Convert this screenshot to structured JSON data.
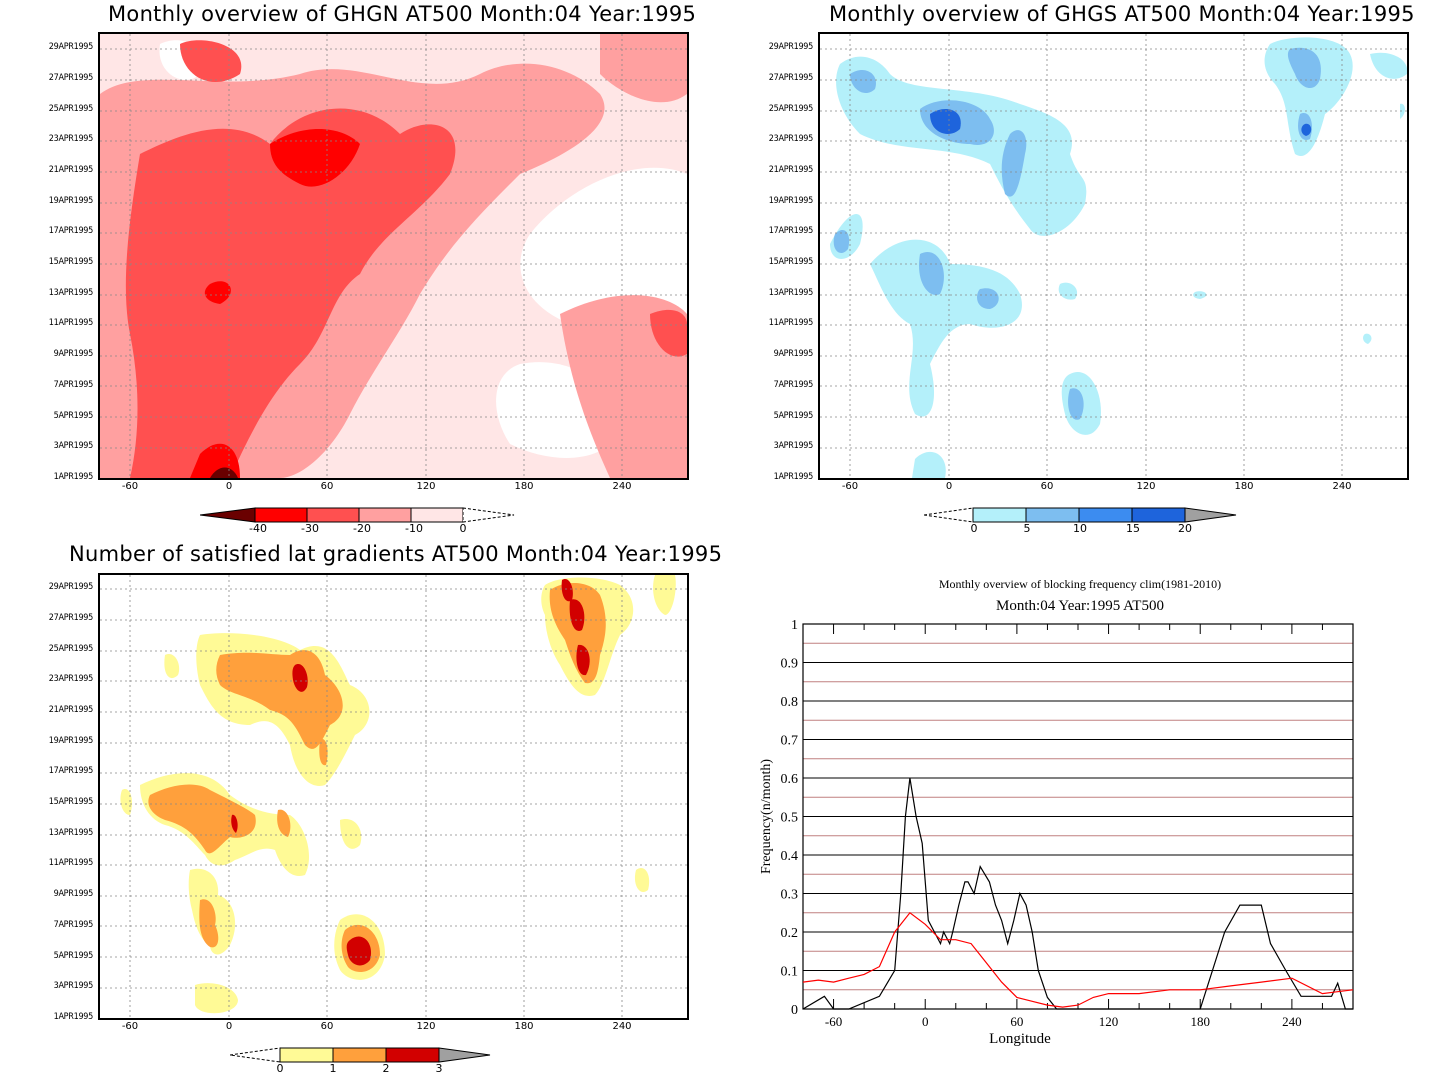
{
  "panels": {
    "ghgn": {
      "title": "Monthly overview of GHGN AT500 Month:04 Year:1995",
      "colorbar": {
        "labels": [
          "-40",
          "-30",
          "-20",
          "-10",
          "0"
        ],
        "colors": [
          "#6a0000",
          "#ff0000",
          "#ff5050",
          "#ffa0a0",
          "#ffe6e6"
        ]
      }
    },
    "ghgs": {
      "title": "Monthly overview of GHGS AT500 Month:04 Year:1995",
      "colorbar": {
        "labels": [
          "0",
          "5",
          "10",
          "15",
          "20"
        ],
        "colors": [
          "#b4f0fa",
          "#7dbef0",
          "#3c8cf0",
          "#1e64dc",
          "#a0a0a0"
        ]
      }
    },
    "lat": {
      "title": "Number of satisfied lat gradients AT500 Month:04 Year:1995",
      "colorbar": {
        "labels": [
          "0",
          "1",
          "2",
          "3"
        ],
        "colors": [
          "#fffa96",
          "#ffa03c",
          "#d20000",
          "#a0a0a0"
        ]
      }
    },
    "freq": {
      "title": "Monthly overview of blocking frequency clim(1981-2010)",
      "subtitle": "Month:04 Year:1995  AT500"
    }
  },
  "date_axis": [
    "1APR1995",
    "3APR1995",
    "5APR1995",
    "7APR1995",
    "9APR1995",
    "11APR1995",
    "13APR1995",
    "15APR1995",
    "17APR1995",
    "19APR1995",
    "21APR1995",
    "23APR1995",
    "25APR1995",
    "27APR1995",
    "29APR1995"
  ],
  "lon_axis": [
    "-60",
    "0",
    "60",
    "120",
    "180",
    "240"
  ],
  "chart_data": [
    {
      "type": "heatmap",
      "title": "Monthly overview of GHGN AT500 Month:04 Year:1995",
      "x_ticks": [
        -60,
        0,
        60,
        120,
        180,
        240
      ],
      "xlim": [
        -78,
        280
      ],
      "y_ticks": [
        "1APR1995",
        "3APR1995",
        "5APR1995",
        "7APR1995",
        "9APR1995",
        "11APR1995",
        "13APR1995",
        "15APR1995",
        "17APR1995",
        "19APR1995",
        "21APR1995",
        "23APR1995",
        "25APR1995",
        "27APR1995",
        "29APR1995"
      ],
      "levels": [
        -40,
        -30,
        -20,
        -10,
        0
      ]
    },
    {
      "type": "heatmap",
      "title": "Monthly overview of GHGS AT500 Month:04 Year:1995",
      "x_ticks": [
        -60,
        0,
        60,
        120,
        180,
        240
      ],
      "xlim": [
        -78,
        280
      ],
      "levels": [
        0,
        5,
        10,
        15,
        20
      ]
    },
    {
      "type": "heatmap",
      "title": "Number of satisfied lat gradients AT500 Month:04 Year:1995",
      "x_ticks": [
        -60,
        0,
        60,
        120,
        180,
        240
      ],
      "xlim": [
        -78,
        280
      ],
      "levels": [
        0,
        1,
        2,
        3
      ]
    },
    {
      "type": "line",
      "title": "Monthly overview of blocking frequency clim(1981-2010)",
      "subtitle": "Month:04 Year:1995  AT500",
      "xlabel": "Longitude",
      "ylabel": "Frequency(n/month)",
      "xlim": [
        -80,
        280
      ],
      "ylim": [
        0,
        1
      ],
      "x_ticks": [
        -60,
        0,
        60,
        120,
        180,
        240
      ],
      "y_ticks": [
        0,
        0.1,
        0.2,
        0.3,
        0.4,
        0.5,
        0.6,
        0.7,
        0.8,
        0.9,
        1
      ],
      "series": [
        {
          "color": "#000000",
          "x": [
            -80,
            -66,
            -60,
            -54,
            -50,
            -30,
            -20,
            -16,
            -13,
            -10,
            -6,
            -2,
            2,
            6,
            10,
            12,
            16,
            18,
            22,
            26,
            28,
            32,
            36,
            42,
            46,
            50,
            54,
            58,
            62,
            66,
            70,
            74,
            80,
            86,
            96,
            180,
            196,
            206,
            212,
            220,
            226,
            236,
            246,
            256,
            266,
            270,
            275,
            280
          ],
          "y": [
            0,
            0.033,
            0,
            0,
            0,
            0.033,
            0.1,
            0.3,
            0.5,
            0.6,
            0.5,
            0.43,
            0.23,
            0.2,
            0.17,
            0.2,
            0.17,
            0.2,
            0.27,
            0.33,
            0.33,
            0.3,
            0.37,
            0.33,
            0.27,
            0.23,
            0.17,
            0.23,
            0.3,
            0.27,
            0.2,
            0.1,
            0.03,
            0,
            0,
            0,
            0.2,
            0.27,
            0.27,
            0.27,
            0.17,
            0.1,
            0.033,
            0.033,
            0.033,
            0.067,
            0,
            0
          ]
        },
        {
          "color": "#ff0000",
          "x": [
            -80,
            -70,
            -60,
            -50,
            -40,
            -30,
            -20,
            -10,
            0,
            10,
            20,
            30,
            40,
            50,
            60,
            70,
            80,
            90,
            100,
            110,
            120,
            140,
            160,
            180,
            200,
            220,
            240,
            260,
            270,
            280
          ],
          "y": [
            0.07,
            0.075,
            0.07,
            0.08,
            0.09,
            0.11,
            0.2,
            0.25,
            0.22,
            0.18,
            0.18,
            0.17,
            0.12,
            0.07,
            0.03,
            0.02,
            0.01,
            0.005,
            0.01,
            0.03,
            0.04,
            0.04,
            0.05,
            0.05,
            0.06,
            0.07,
            0.08,
            0.04,
            0.045,
            0.05
          ]
        }
      ]
    }
  ]
}
